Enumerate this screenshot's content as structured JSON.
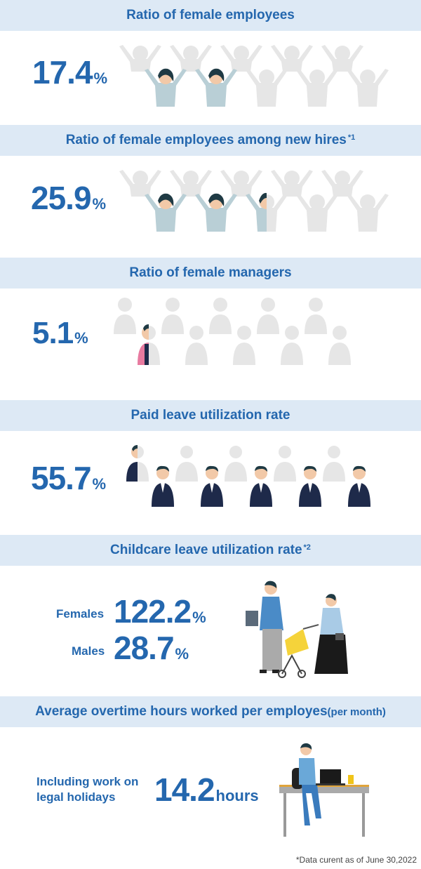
{
  "sections": [
    {
      "title": "Ratio of female employees",
      "sup": "",
      "value": "17.4",
      "unit": "%",
      "filled_fraction": 0.174
    },
    {
      "title": "Ratio of female employees among new hires",
      "sup": "*1",
      "value": "25.9",
      "unit": "%",
      "filled_fraction": 0.259
    },
    {
      "title": "Ratio of female managers",
      "sup": "",
      "value": "5.1",
      "unit": "%",
      "filled_fraction": 0.051
    },
    {
      "title": "Paid leave utilization rate",
      "sup": "",
      "value": "55.7",
      "unit": "%",
      "filled_fraction": 0.557
    },
    {
      "title": "Childcare leave utilization rate",
      "sup": "*2",
      "females_label": "Females",
      "females_value": "122.2",
      "females_unit": "%",
      "males_label": "Males",
      "males_value": "28.7",
      "males_unit": "%"
    },
    {
      "title": "Average overtime hours worked per employes",
      "title_suffix": "(per month)",
      "label_line1": "Including work on",
      "label_line2": "legal holidays",
      "value": "14.2",
      "unit": "hours"
    }
  ],
  "footnote": "*Data curent as of June 30,2022",
  "colors": {
    "band": "#dde9f5",
    "text": "#2467ae",
    "ghost": "#e6e6e6",
    "top": "#b9cfd6",
    "skin": "#f2c9a8",
    "hair": "#1f3a44",
    "suit": "#1e2a4a",
    "pink": "#e87aa0"
  }
}
